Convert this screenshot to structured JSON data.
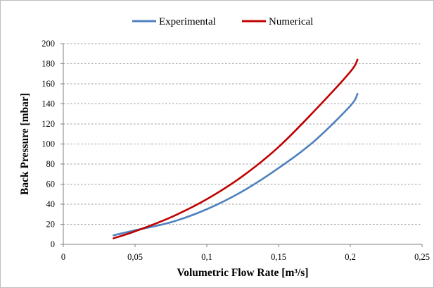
{
  "chart_data": {
    "type": "line",
    "xlabel": "Volumetric Flow Rate [m³/s]",
    "ylabel": "Back Pressure [mbar]",
    "xlim": [
      0,
      0.25
    ],
    "ylim": [
      0,
      200
    ],
    "x_ticks": [
      "0",
      "0,05",
      "0,1",
      "0,15",
      "0,2",
      "0,25"
    ],
    "y_ticks": [
      "0",
      "20",
      "40",
      "60",
      "80",
      "100",
      "120",
      "140",
      "160",
      "180",
      "200"
    ],
    "grid": "horizontal dashed",
    "legend_position": "top",
    "series": [
      {
        "name": "Experimental",
        "color": "#4f81bd",
        "x": [
          0.035,
          0.05,
          0.075,
          0.1,
          0.125,
          0.15,
          0.175,
          0.2,
          0.205
        ],
        "y": [
          9,
          14,
          22,
          35,
          53,
          76,
          103,
          138,
          150
        ]
      },
      {
        "name": "Numerical",
        "color": "#c00000",
        "x": [
          0.035,
          0.05,
          0.075,
          0.1,
          0.125,
          0.15,
          0.175,
          0.2,
          0.205
        ],
        "y": [
          6,
          13,
          27,
          45,
          68,
          97,
          133,
          172,
          184
        ]
      }
    ]
  }
}
